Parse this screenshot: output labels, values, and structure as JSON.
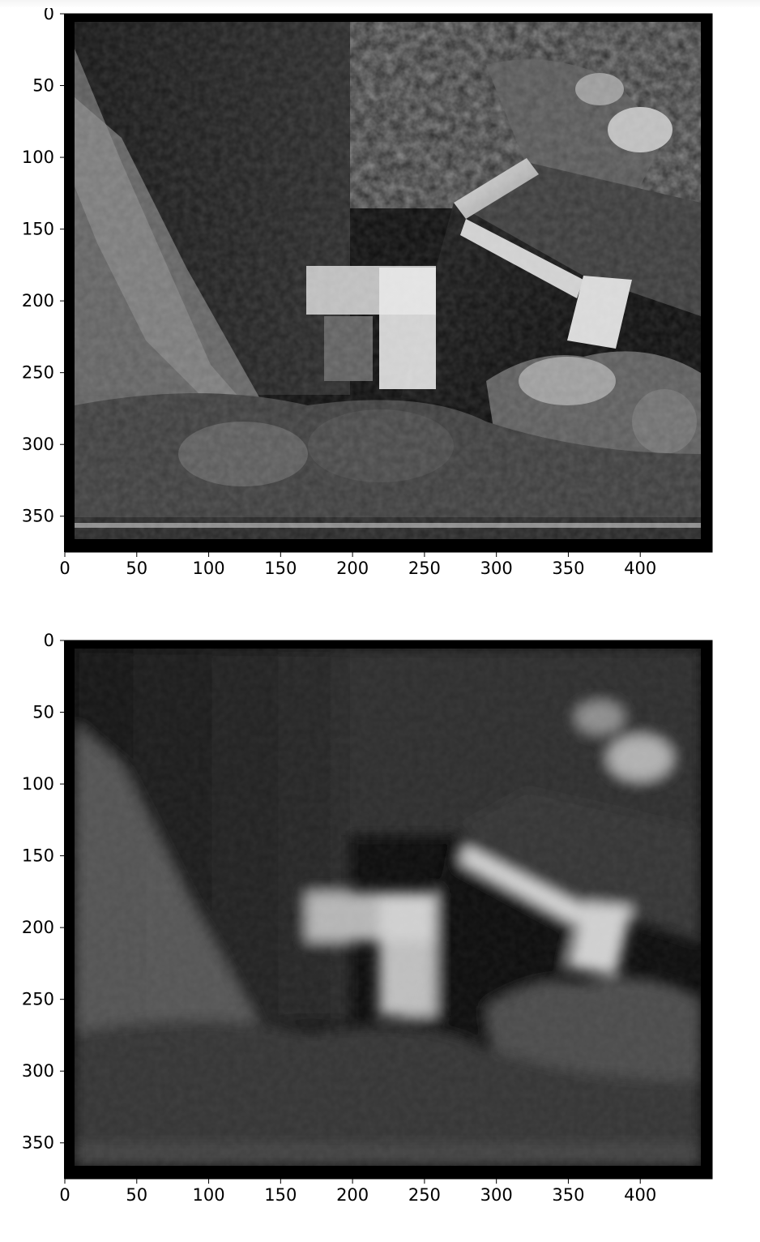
{
  "figure": {
    "background": "#ffffff",
    "axis_color": "#000000",
    "image_colormap": "gray"
  },
  "chart_data": [
    {
      "type": "heatmap",
      "title": "",
      "xlabel": "",
      "ylabel": "",
      "image": "grayscale photo of plants, a tilted box and a patterned wall",
      "xlim": [
        0,
        450
      ],
      "ylim": [
        375,
        0
      ],
      "xticks": [
        0,
        50,
        100,
        150,
        200,
        250,
        300,
        350,
        400
      ],
      "yticks": [
        0,
        50,
        100,
        150,
        200,
        250,
        300,
        350
      ],
      "grid": false
    },
    {
      "type": "heatmap",
      "title": "",
      "xlabel": "",
      "ylabel": "",
      "image": "blurred version of the same grayscale photo",
      "xlim": [
        0,
        450
      ],
      "ylim": [
        375,
        0
      ],
      "xticks": [
        0,
        50,
        100,
        150,
        200,
        250,
        300,
        350,
        400
      ],
      "yticks": [
        0,
        50,
        100,
        150,
        200,
        250,
        300,
        350
      ],
      "grid": false
    }
  ]
}
